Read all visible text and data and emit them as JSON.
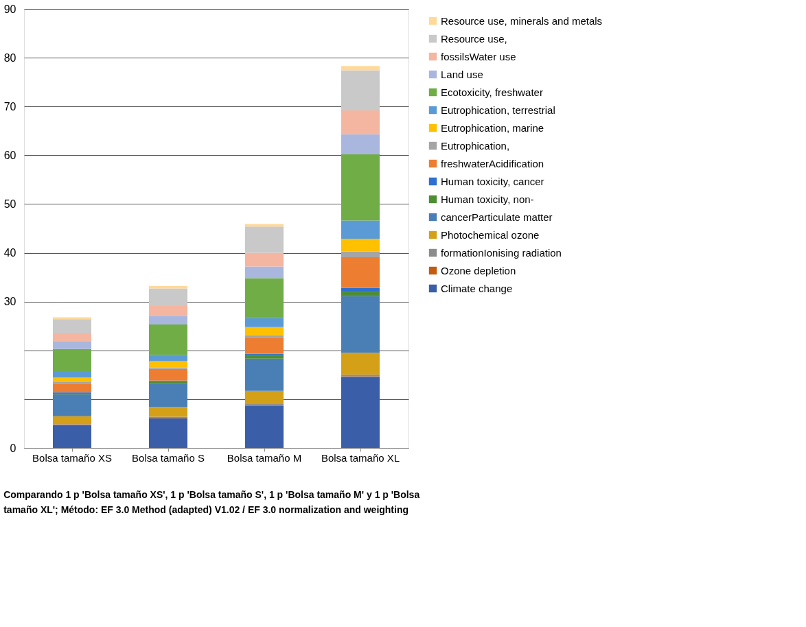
{
  "chart_data": {
    "type": "bar",
    "stacked": true,
    "categories": [
      "Bolsa tamaño XS",
      "Bolsa tamaño S",
      "Bolsa tamaño M",
      "Bolsa tamaño XL"
    ],
    "ylim": [
      0,
      90
    ],
    "yticks": [
      0,
      {
        "value": 10,
        "label": null
      },
      {
        "value": 20,
        "label": null
      },
      30,
      40,
      50,
      60,
      70,
      80,
      90
    ],
    "grid": "y",
    "legend": "right",
    "series": [
      {
        "name": "Climate change",
        "color": "#3a5ea8",
        "values": [
          4.7,
          6.1,
          8.7,
          14.6
        ]
      },
      {
        "name": "Ozone depletion",
        "color": "#c55a11",
        "values": [
          0.1,
          0.1,
          0.1,
          0.1
        ]
      },
      {
        "name": "formationIonising radiation",
        "color": "#8c8c8c",
        "values": [
          0.1,
          0.2,
          0.2,
          0.3
        ]
      },
      {
        "name": "Photochemical ozone",
        "color": "#d4a017",
        "values": [
          1.6,
          2.0,
          2.7,
          4.5
        ]
      },
      {
        "name": "cancerParticulate matter",
        "color": "#4a7fb5",
        "values": [
          4.5,
          4.7,
          6.6,
          11.6
        ]
      },
      {
        "name": "Human toxicity, non-",
        "color": "#4e8d32",
        "values": [
          0.3,
          0.6,
          0.8,
          1.1
        ]
      },
      {
        "name": "Human toxicity, cancer",
        "color": "#2e6fd0",
        "values": [
          0.1,
          0.1,
          0.2,
          0.6
        ]
      },
      {
        "name": "freshwaterAcidification",
        "color": "#ed7d31",
        "values": [
          1.8,
          2.4,
          3.4,
          6.3
        ]
      },
      {
        "name": "Eutrophication,",
        "color": "#a5a5a5",
        "values": [
          0.3,
          0.3,
          0.4,
          1.2
        ]
      },
      {
        "name": "Eutrophication, marine",
        "color": "#ffc000",
        "values": [
          0.9,
          1.3,
          1.7,
          2.6
        ]
      },
      {
        "name": "Eutrophication, terrestrial",
        "color": "#5b9bd5",
        "values": [
          1.2,
          1.3,
          1.8,
          3.7
        ]
      },
      {
        "name": "Ecotoxicity, freshwater",
        "color": "#70ad47",
        "values": [
          4.7,
          6.2,
          8.2,
          13.6
        ]
      },
      {
        "name": "Land use",
        "color": "#a9b7de",
        "values": [
          1.6,
          1.8,
          2.4,
          4.1
        ]
      },
      {
        "name": "fossilsWater use",
        "color": "#f4b6a0",
        "values": [
          1.6,
          2.0,
          2.8,
          4.9
        ]
      },
      {
        "name": "Resource use,",
        "color": "#c9c9c9",
        "values": [
          2.9,
          3.6,
          5.4,
          8.2
        ]
      },
      {
        "name": "Resource use, minerals and metals",
        "color": "#ffd99a",
        "values": [
          0.4,
          0.5,
          0.5,
          0.9
        ]
      }
    ],
    "annotations": [
      "Comparando 1 p 'Bolsa tamaño XS', 1 p 'Bolsa tamaño S', 1 p 'Bolsa tamaño M' y 1 p 'Bolsa tamaño XL';  Método: EF 3.0 Method (adapted) V1.02 / EF 3.0 normalization and weighting"
    ]
  }
}
